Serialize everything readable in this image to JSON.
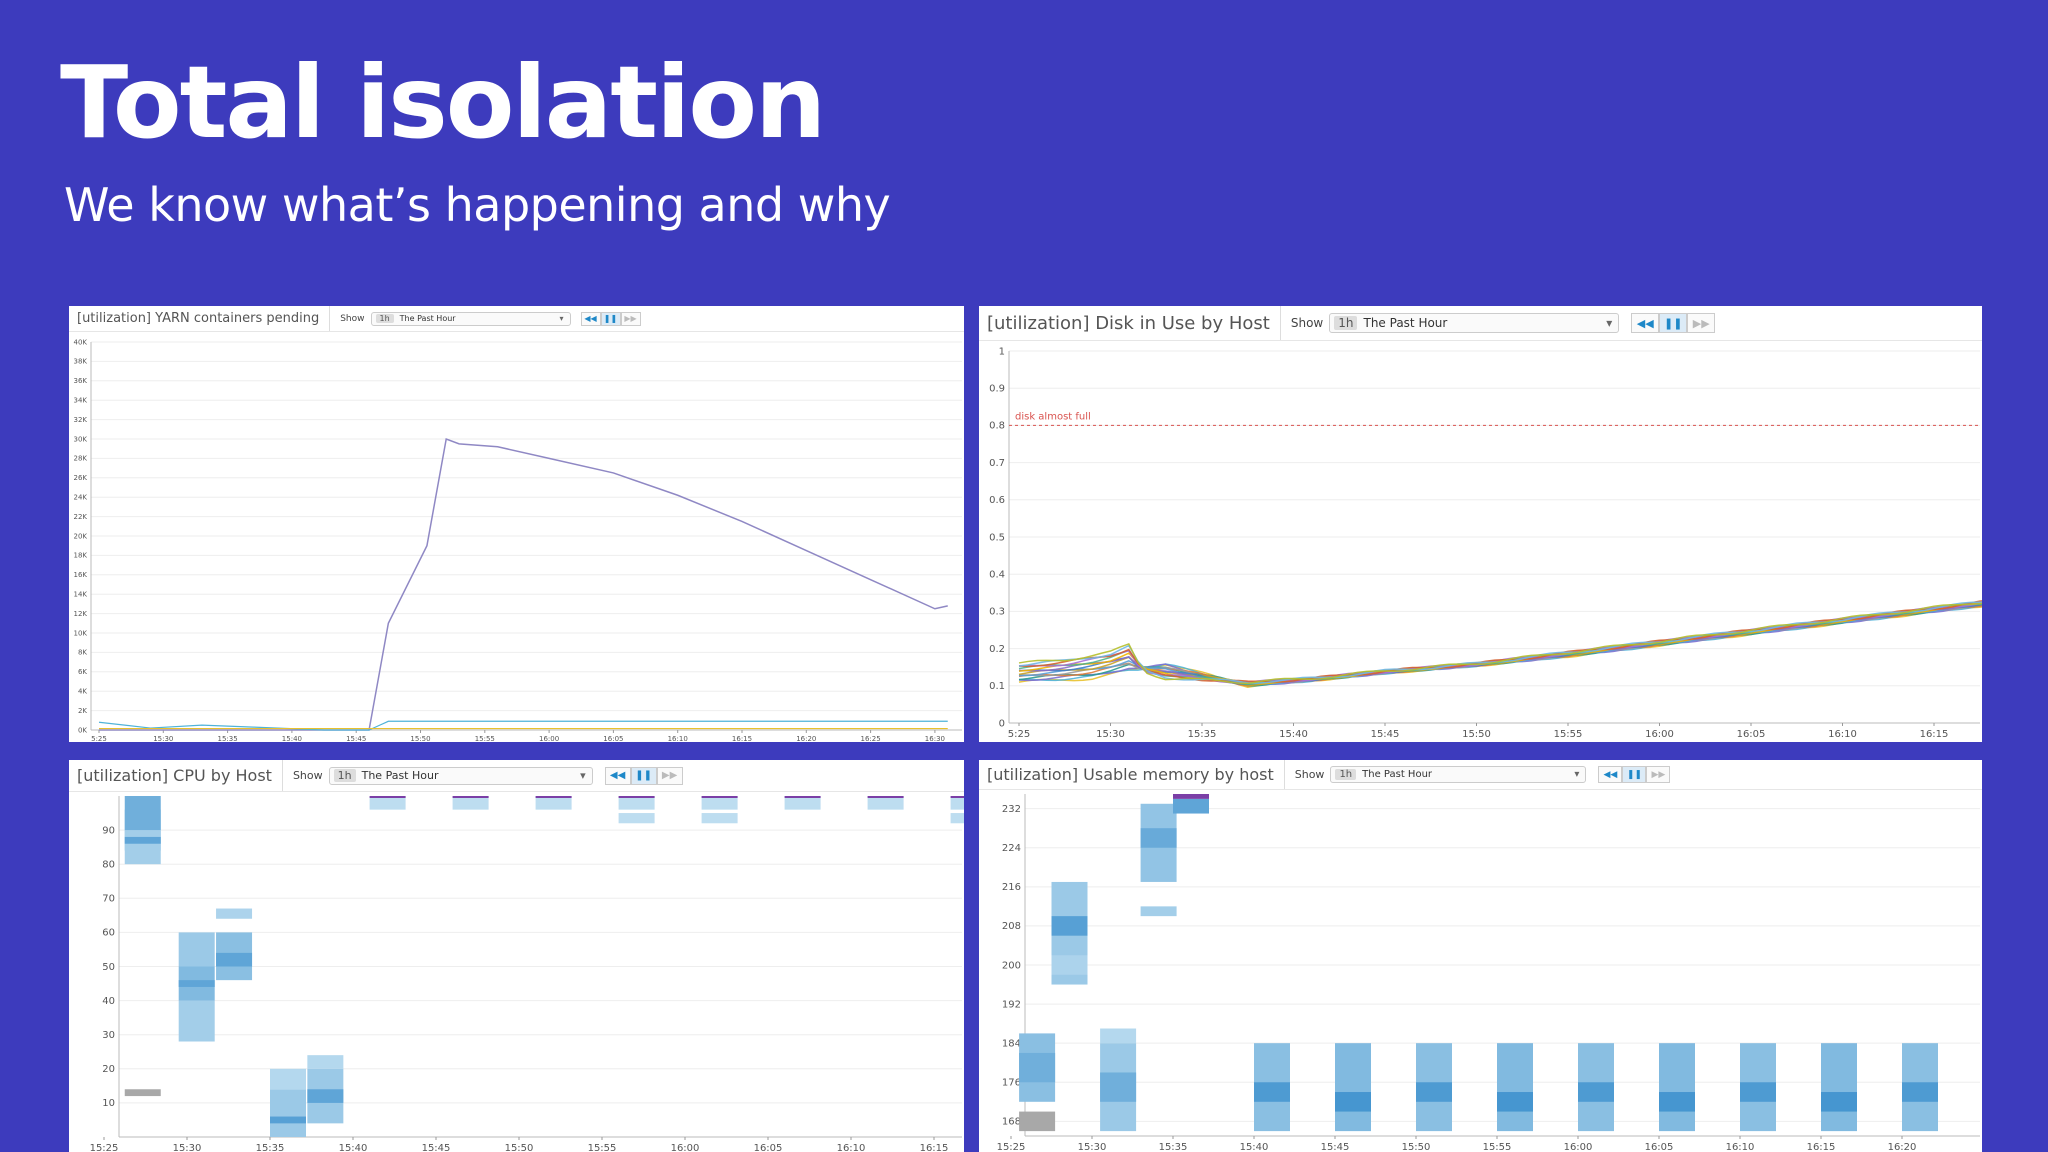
{
  "slide": {
    "title": "Total isolation",
    "subtitle": "We know what’s happening and why"
  },
  "panels": {
    "yarn": {
      "title": "[utilization] YARN containers pending",
      "show_label": "Show",
      "range_badge": "1h",
      "range_label": "The Past Hour"
    },
    "disk": {
      "title": "[utilization] Disk in Use by Host",
      "show_label": "Show",
      "range_badge": "1h",
      "range_label": "The Past Hour"
    },
    "cpu": {
      "title": "[utilization] CPU by Host",
      "show_label": "Show",
      "range_badge": "1h",
      "range_label": "The Past Hour"
    },
    "mem": {
      "title": "[utilization] Usable memory by host",
      "show_label": "Show",
      "range_badge": "1h",
      "range_label": "The Past Hour"
    }
  },
  "icons": {
    "rewind": "rewind-icon",
    "pause": "pause-icon",
    "forward": "fast-forward-icon",
    "dropdown": "chevron-down-icon"
  },
  "colors": {
    "background": "#3d3bbd",
    "yarn_line": "#8f88c4",
    "heat_light": "#d6ecf7",
    "heat_dark": "#2c87c9",
    "heat_max": "#7b3fa6",
    "threshold": "#d9534f"
  },
  "chart_data": [
    {
      "type": "line",
      "title": "[utilization] YARN containers pending",
      "x": [
        "5:25",
        "15:30",
        "15:35",
        "15:40",
        "15:45",
        "15:50",
        "15:55",
        "16:00",
        "16:05",
        "16:10",
        "16:15",
        "16:20",
        "16:25",
        "16:30"
      ],
      "yticks": [
        "0K",
        "2K",
        "4K",
        "6K",
        "8K",
        "10K",
        "12K",
        "14K",
        "16K",
        "18K",
        "20K",
        "22K",
        "24K",
        "26K",
        "28K",
        "30K",
        "32K",
        "34K",
        "36K",
        "38K",
        "40K"
      ],
      "ylim": [
        0,
        40000
      ],
      "grid": true,
      "series": [
        {
          "x": [
            0,
            4.2,
            4.5,
            5.1,
            5.4,
            5.6,
            6.2,
            7,
            8,
            9,
            10,
            11,
            12,
            13,
            13.2
          ],
          "values": [
            0,
            0,
            11000,
            19000,
            30000,
            29500,
            29200,
            28000,
            26500,
            24200,
            21500,
            18500,
            15500,
            12500,
            12800
          ]
        },
        {
          "x": [
            0,
            0.8,
            1.6,
            2.4,
            3.5,
            4.2,
            4.5,
            13.2
          ],
          "values": [
            800,
            200,
            500,
            300,
            0,
            0,
            900,
            900
          ]
        },
        {
          "x": [
            0,
            13.2
          ],
          "values": [
            150,
            150
          ]
        }
      ]
    },
    {
      "type": "line",
      "title": "[utilization] Disk in Use by Host",
      "x": [
        "5:25",
        "15:30",
        "15:35",
        "15:40",
        "15:45",
        "15:50",
        "15:55",
        "16:00",
        "16:05",
        "16:10",
        "16:15"
      ],
      "yticks": [
        "0",
        "0.1",
        "0.2",
        "0.3",
        "0.4",
        "0.5",
        "0.6",
        "0.7",
        "0.8",
        "0.9",
        "1"
      ],
      "ylim": [
        0,
        1
      ],
      "grid": true,
      "annotations": [
        {
          "label": "disk almost full",
          "y": 0.8
        }
      ],
      "series_low": {
        "x": [
          0,
          0.8,
          1.2,
          1.6,
          2.5,
          3.2,
          4,
          5,
          6,
          7,
          8,
          9,
          10,
          11
        ],
        "values": [
          0.11,
          0.12,
          0.14,
          0.16,
          0.1,
          0.115,
          0.135,
          0.155,
          0.18,
          0.21,
          0.24,
          0.27,
          0.3,
          0.33
        ]
      },
      "series_high": {
        "x": [
          0,
          0.5,
          1.0,
          1.2,
          1.35,
          1.6,
          2.5,
          3.2,
          4,
          5,
          6,
          7,
          8,
          9,
          10,
          11
        ],
        "values": [
          0.16,
          0.17,
          0.19,
          0.21,
          0.14,
          0.12,
          0.11,
          0.12,
          0.14,
          0.16,
          0.19,
          0.22,
          0.25,
          0.28,
          0.31,
          0.34
        ]
      }
    },
    {
      "type": "heatmap",
      "title": "[utilization] CPU by Host",
      "x": [
        "15:25",
        "15:30",
        "15:35",
        "15:40",
        "15:45",
        "15:50",
        "15:55",
        "16:00",
        "16:05",
        "16:10",
        "16:15"
      ],
      "yticks": [
        "10",
        "20",
        "30",
        "40",
        "50",
        "60",
        "70",
        "80",
        "90"
      ],
      "ylim": [
        0,
        100
      ],
      "columns": [
        {
          "x": 0.25,
          "bins": [
            [
              12,
              14,
              0.4,
              "gray"
            ],
            [
              84,
              96,
              0.4
            ],
            [
              90,
              100,
              0.6
            ],
            [
              80,
              90,
              0.3
            ],
            [
              86,
              88,
              0.7
            ]
          ]
        },
        {
          "x": 0.9,
          "bins": [
            [
              28,
              40,
              0.3
            ],
            [
              40,
              50,
              0.5
            ],
            [
              50,
              60,
              0.35
            ],
            [
              44,
              46,
              0.7
            ]
          ]
        },
        {
          "x": 1.35,
          "bins": [
            [
              46,
              60,
              0.45
            ],
            [
              50,
              54,
              0.7
            ],
            [
              64,
              67,
              0.25
            ]
          ]
        },
        {
          "x": 2.0,
          "bins": [
            [
              0,
              14,
              0.35
            ],
            [
              4,
              6,
              0.75
            ],
            [
              14,
              20,
              0.2
            ]
          ]
        },
        {
          "x": 2.45,
          "bins": [
            [
              4,
              20,
              0.35
            ],
            [
              10,
              14,
              0.7
            ],
            [
              20,
              24,
              0.2
            ]
          ]
        },
        {
          "x": 3.2,
          "bins": [
            [
              96,
              100,
              0.15
            ],
            [
              100,
              101,
              1.0,
              "max"
            ]
          ]
        },
        {
          "x": 4.2,
          "bins": [
            [
              96,
              100,
              0.15
            ],
            [
              100,
              101,
              1.0,
              "max"
            ]
          ]
        },
        {
          "x": 5.2,
          "bins": [
            [
              96,
              100,
              0.15
            ],
            [
              100,
              101,
              1.0,
              "max"
            ]
          ]
        },
        {
          "x": 6.2,
          "bins": [
            [
              96,
              100,
              0.15
            ],
            [
              92,
              95,
              0.15
            ],
            [
              100,
              101,
              1.0,
              "max"
            ]
          ]
        },
        {
          "x": 7.2,
          "bins": [
            [
              96,
              100,
              0.15
            ],
            [
              92,
              95,
              0.15
            ],
            [
              100,
              101,
              1.0,
              "max"
            ]
          ]
        },
        {
          "x": 8.2,
          "bins": [
            [
              96,
              100,
              0.15
            ],
            [
              100,
              101,
              1.0,
              "max"
            ]
          ]
        },
        {
          "x": 9.2,
          "bins": [
            [
              96,
              100,
              0.15
            ],
            [
              100,
              101,
              1.0,
              "max"
            ]
          ]
        },
        {
          "x": 10.2,
          "bins": [
            [
              96,
              100,
              0.15
            ],
            [
              92,
              95,
              0.15
            ],
            [
              100,
              101,
              1.0,
              "max"
            ]
          ]
        }
      ]
    },
    {
      "type": "heatmap",
      "title": "[utilization] Usable memory by host",
      "x": [
        "15:25",
        "15:30",
        "15:35",
        "15:40",
        "15:45",
        "15:50",
        "15:55",
        "16:00",
        "16:05",
        "16:10",
        "16:15",
        "16:20"
      ],
      "yticks": [
        "168",
        "176",
        "184",
        "192",
        "200",
        "208",
        "216",
        "224",
        "232"
      ],
      "ylim": [
        165,
        235
      ],
      "columns": [
        {
          "x": 0.1,
          "bins": [
            [
              166,
              170,
              0.4,
              "gray"
            ],
            [
              172,
              186,
              0.45
            ],
            [
              176,
              182,
              0.6
            ]
          ]
        },
        {
          "x": 0.5,
          "bins": [
            [
              196,
              217,
              0.35
            ],
            [
              206,
              210,
              0.75
            ],
            [
              198,
              202,
              0.25
            ]
          ]
        },
        {
          "x": 1.1,
          "bins": [
            [
              166,
              184,
              0.35
            ],
            [
              172,
              178,
              0.6
            ],
            [
              184,
              187,
              0.2
            ]
          ]
        },
        {
          "x": 1.6,
          "bins": [
            [
              217,
              233,
              0.4
            ],
            [
              210,
              212,
              0.3
            ],
            [
              224,
              228,
              0.65
            ]
          ]
        },
        {
          "x": 2.0,
          "bins": [
            [
              231,
              234,
              0.7
            ],
            [
              234,
              236,
              1.0,
              "max"
            ]
          ]
        },
        {
          "x": 3.0,
          "bins": [
            [
              166,
              184,
              0.45
            ],
            [
              172,
              176,
              0.8
            ]
          ]
        },
        {
          "x": 4.0,
          "bins": [
            [
              166,
              184,
              0.5
            ],
            [
              170,
              174,
              0.85
            ]
          ]
        },
        {
          "x": 5.0,
          "bins": [
            [
              166,
              184,
              0.45
            ],
            [
              172,
              176,
              0.8
            ]
          ]
        },
        {
          "x": 6.0,
          "bins": [
            [
              166,
              184,
              0.5
            ],
            [
              170,
              174,
              0.85
            ]
          ]
        },
        {
          "x": 7.0,
          "bins": [
            [
              166,
              184,
              0.45
            ],
            [
              172,
              176,
              0.8
            ]
          ]
        },
        {
          "x": 8.0,
          "bins": [
            [
              166,
              184,
              0.5
            ],
            [
              170,
              174,
              0.85
            ]
          ]
        },
        {
          "x": 9.0,
          "bins": [
            [
              166,
              184,
              0.45
            ],
            [
              172,
              176,
              0.8
            ]
          ]
        },
        {
          "x": 10.0,
          "bins": [
            [
              166,
              184,
              0.5
            ],
            [
              170,
              174,
              0.85
            ]
          ]
        },
        {
          "x": 11.0,
          "bins": [
            [
              166,
              184,
              0.45
            ],
            [
              172,
              176,
              0.8
            ]
          ]
        }
      ]
    }
  ]
}
